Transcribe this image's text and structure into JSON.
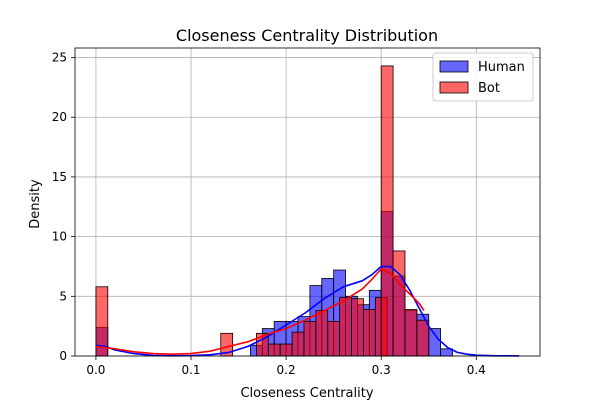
{
  "chart_data": {
    "type": "bar",
    "title": "Closeness Centrality Distribution",
    "xlabel": "Closeness Centrality",
    "ylabel": "Density",
    "xlim": [
      -0.022,
      0.467
    ],
    "ylim": [
      0,
      25.8
    ],
    "xticks": [
      0.0,
      0.1,
      0.2,
      0.3,
      0.4
    ],
    "xtick_labels": [
      "0.0",
      "0.1",
      "0.2",
      "0.3",
      "0.4"
    ],
    "yticks": [
      0,
      5,
      10,
      15,
      20,
      25
    ],
    "ytick_labels": [
      "0",
      "5",
      "10",
      "15",
      "20",
      "25"
    ],
    "grid": true,
    "legend_position": "top-right",
    "series": [
      {
        "name": "Human",
        "color": "#0000ff",
        "bin_width": 0.0125,
        "bins": [
          {
            "x": 0.0,
            "y": 2.4
          },
          {
            "x": 0.1625,
            "y": 0.9
          },
          {
            "x": 0.175,
            "y": 2.3
          },
          {
            "x": 0.1875,
            "y": 2.9
          },
          {
            "x": 0.2,
            "y": 2.9
          },
          {
            "x": 0.2125,
            "y": 3.3
          },
          {
            "x": 0.225,
            "y": 5.9
          },
          {
            "x": 0.2375,
            "y": 6.5
          },
          {
            "x": 0.25,
            "y": 7.2
          },
          {
            "x": 0.2625,
            "y": 5.0
          },
          {
            "x": 0.275,
            "y": 4.3
          },
          {
            "x": 0.2875,
            "y": 5.5
          },
          {
            "x": 0.3,
            "y": 12.1
          },
          {
            "x": 0.3125,
            "y": 6.7
          },
          {
            "x": 0.325,
            "y": 3.8
          },
          {
            "x": 0.3375,
            "y": 3.5
          },
          {
            "x": 0.35,
            "y": 2.3
          },
          {
            "x": 0.3625,
            "y": 0.6
          }
        ],
        "kde": {
          "x": [
            0.0,
            0.01,
            0.02,
            0.04,
            0.06,
            0.08,
            0.1,
            0.12,
            0.14,
            0.16,
            0.18,
            0.2,
            0.22,
            0.24,
            0.26,
            0.28,
            0.29,
            0.3,
            0.31,
            0.32,
            0.33,
            0.34,
            0.35,
            0.36,
            0.37,
            0.38,
            0.39,
            0.4,
            0.42,
            0.445
          ],
          "y": [
            0.9,
            0.8,
            0.5,
            0.2,
            0.05,
            0.02,
            0.03,
            0.1,
            0.3,
            0.8,
            1.6,
            2.6,
            3.6,
            4.8,
            5.8,
            6.3,
            6.8,
            7.5,
            7.5,
            6.8,
            5.5,
            4.0,
            2.5,
            1.4,
            0.7,
            0.3,
            0.15,
            0.07,
            0.02,
            0.01
          ]
        }
      },
      {
        "name": "Bot",
        "color": "#ff0000",
        "bin_width": 0.0125,
        "bins": [
          {
            "x": 0.0,
            "y": 5.8
          },
          {
            "x": 0.1313,
            "y": 1.9
          },
          {
            "x": 0.1688,
            "y": 1.9
          },
          {
            "x": 0.1813,
            "y": 1.0
          },
          {
            "x": 0.1938,
            "y": 1.0
          },
          {
            "x": 0.2063,
            "y": 2.0
          },
          {
            "x": 0.2188,
            "y": 2.9
          },
          {
            "x": 0.2313,
            "y": 3.8
          },
          {
            "x": 0.2438,
            "y": 2.9
          },
          {
            "x": 0.2563,
            "y": 4.9
          },
          {
            "x": 0.2688,
            "y": 4.8
          },
          {
            "x": 0.2813,
            "y": 3.9
          },
          {
            "x": 0.2938,
            "y": 4.9
          },
          {
            "x": 0.3,
            "y": 24.3
          },
          {
            "x": 0.3125,
            "y": 8.8
          },
          {
            "x": 0.325,
            "y": 3.9
          },
          {
            "x": 0.3375,
            "y": 3.0
          }
        ],
        "kde": {
          "x": [
            0.0,
            0.02,
            0.04,
            0.06,
            0.08,
            0.1,
            0.12,
            0.14,
            0.16,
            0.18,
            0.2,
            0.22,
            0.24,
            0.26,
            0.28,
            0.29,
            0.3,
            0.31,
            0.32,
            0.33,
            0.34,
            0.345
          ],
          "y": [
            0.8,
            0.6,
            0.35,
            0.2,
            0.15,
            0.2,
            0.4,
            0.8,
            1.2,
            1.8,
            2.3,
            3.0,
            3.8,
            4.6,
            5.6,
            6.4,
            7.3,
            6.9,
            6.0,
            5.2,
            4.4,
            3.8
          ]
        }
      }
    ]
  }
}
